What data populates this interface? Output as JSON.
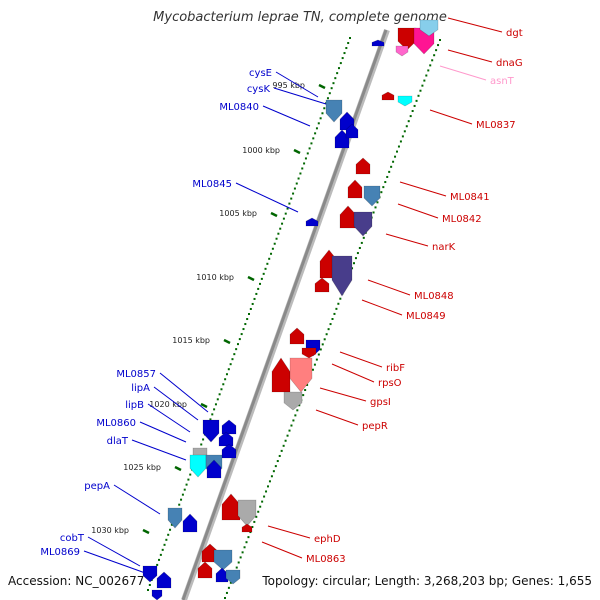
{
  "title": "Mycobacterium leprae TN, complete genome",
  "footer": {
    "accession": "Accession: NC_002677",
    "summary": "Topology: circular; Length: 3,268,203 bp; Genes: 1,655"
  },
  "colors": {
    "forward": "#0000cc",
    "reverse": "#cc0000",
    "pink": "#ff99cc",
    "tick": "#006600",
    "backbone": "#8a8a8a"
  },
  "scale_labels": [
    "995 kbp",
    "1000 kbp",
    "1005 kbp",
    "1010 kbp",
    "1015 kbp",
    "1020 kbp",
    "1025 kbp",
    "1030 kbp"
  ],
  "left_labels": [
    "cysE",
    "cysK",
    "ML0840",
    "ML0845",
    "ML0857",
    "lipA",
    "lipB",
    "ML0860",
    "dlaT",
    "pepA",
    "cobT",
    "ML0869"
  ],
  "right_labels": [
    "dgt",
    "dnaG",
    "asnT",
    "ML0837",
    "ML0841",
    "ML0842",
    "narK",
    "ML0848",
    "ML0849",
    "ribF",
    "rpsO",
    "gpsI",
    "pepR",
    "ephD",
    "ML0863"
  ]
}
